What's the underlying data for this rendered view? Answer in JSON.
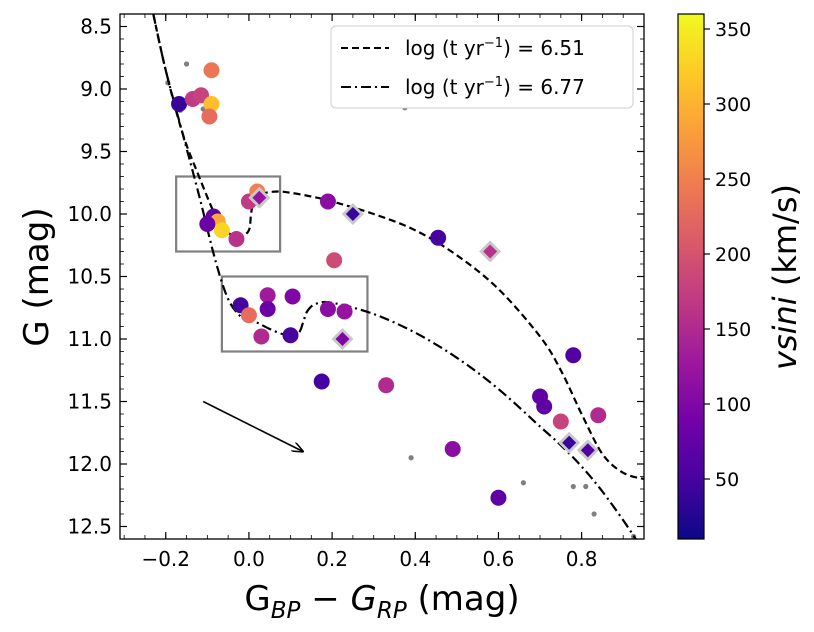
{
  "chart_data": {
    "type": "scatter",
    "xlabel": "G_{BP} − G_{RP} (mag)",
    "xlabel_parts": {
      "main": "G",
      "sub1": "BP",
      "mid": " − ",
      "it": "G",
      "sub2": "RP",
      "tail": " (mag)"
    },
    "ylabel": "G (mag)",
    "xlim": [
      -0.31,
      0.95
    ],
    "ylim": [
      12.6,
      8.4
    ],
    "xticks": [
      -0.2,
      0.0,
      0.2,
      0.4,
      0.6,
      0.8
    ],
    "xtick_labels": [
      "−0.2",
      "0.0",
      "0.2",
      "0.4",
      "0.6",
      "0.8"
    ],
    "yticks": [
      8.5,
      9.0,
      9.5,
      10.0,
      10.5,
      11.0,
      11.5,
      12.0,
      12.5
    ],
    "ytick_labels": [
      "8.5",
      "9.0",
      "9.5",
      "10.0",
      "10.5",
      "11.0",
      "11.5",
      "12.0",
      "12.5"
    ],
    "colorbar": {
      "label": "vsini (km/s)",
      "label_it": "vsini",
      "label_tail": " (km/s)",
      "range": [
        10,
        360
      ],
      "ticks": [
        50,
        100,
        150,
        200,
        250,
        300,
        350
      ],
      "tick_labels": [
        "50",
        "100",
        "150",
        "200",
        "250",
        "300",
        "350"
      ],
      "colormap": "plasma",
      "stops": [
        "#0d0887",
        "#46039f",
        "#7201a8",
        "#9c179e",
        "#bd3786",
        "#d8576b",
        "#ed7953",
        "#fb9f3a",
        "#fdca26",
        "#f0f921"
      ]
    },
    "legend": {
      "position": "top-right",
      "entries": [
        {
          "label": "log (t yr⁻¹) = 6.51",
          "main": "log (t yr",
          "sup": "−1",
          "tail": ") = 6.51",
          "style": "dashed"
        },
        {
          "label": "log (t yr⁻¹) = 6.77",
          "main": "log (t yr",
          "sup": "−1",
          "tail": ") = 6.77",
          "style": "dashdot"
        }
      ]
    },
    "isochrones": [
      {
        "name": "log (t yr⁻¹) = 6.51",
        "style": "dashed",
        "x": [
          -0.23,
          -0.2,
          -0.16,
          -0.12,
          -0.08,
          -0.06,
          -0.04,
          -0.02,
          0.0,
          0.005,
          0.01,
          0.02,
          0.04,
          0.07,
          0.1,
          0.15,
          0.2,
          0.3,
          0.4,
          0.5,
          0.6,
          0.7,
          0.75,
          0.8,
          0.85,
          0.9,
          0.95
        ],
        "y": [
          8.4,
          8.85,
          9.35,
          9.7,
          10.02,
          10.12,
          10.17,
          10.18,
          10.13,
          10.0,
          9.92,
          9.86,
          9.83,
          9.82,
          9.83,
          9.86,
          9.9,
          10.0,
          10.13,
          10.33,
          10.6,
          10.98,
          11.25,
          11.6,
          11.92,
          12.07,
          12.12
        ]
      },
      {
        "name": "log (t yr⁻¹) = 6.77",
        "style": "dashdot",
        "x": [
          -0.23,
          -0.2,
          -0.16,
          -0.12,
          -0.08,
          -0.05,
          -0.02,
          0.0,
          0.02,
          0.05,
          0.08,
          0.1,
          0.12,
          0.13,
          0.14,
          0.16,
          0.2,
          0.3,
          0.4,
          0.5,
          0.6,
          0.7,
          0.75,
          0.8,
          0.85,
          0.9,
          0.93
        ],
        "y": [
          8.4,
          8.85,
          9.35,
          9.85,
          10.38,
          10.68,
          10.82,
          10.85,
          10.87,
          10.92,
          10.96,
          10.97,
          10.95,
          10.87,
          10.78,
          10.72,
          10.71,
          10.8,
          10.95,
          11.15,
          11.4,
          11.7,
          11.85,
          12.02,
          12.22,
          12.45,
          12.6
        ]
      }
    ],
    "boxes": [
      {
        "x": [
          -0.175,
          0.075
        ],
        "y": [
          9.7,
          10.3
        ]
      },
      {
        "x": [
          -0.065,
          0.285
        ],
        "y": [
          10.5,
          11.1
        ]
      }
    ],
    "arrow": {
      "from": [
        -0.11,
        11.5
      ],
      "to": [
        0.13,
        11.9
      ]
    },
    "field_stars": [
      {
        "x": -0.195,
        "y": 8.95
      },
      {
        "x": -0.165,
        "y": 9.17
      },
      {
        "x": -0.15,
        "y": 8.8
      },
      {
        "x": -0.11,
        "y": 9.16
      },
      {
        "x": -0.1,
        "y": 9.2
      },
      {
        "x": 0.375,
        "y": 9.15
      },
      {
        "x": 0.39,
        "y": 11.95
      },
      {
        "x": 0.66,
        "y": 12.15
      },
      {
        "x": 0.78,
        "y": 12.18
      },
      {
        "x": 0.81,
        "y": 12.18
      },
      {
        "x": 0.83,
        "y": 12.4
      },
      {
        "x": 0.925,
        "y": 12.58
      }
    ],
    "stars_circle": [
      {
        "x": -0.168,
        "y": 9.12,
        "vsini": 40
      },
      {
        "x": -0.135,
        "y": 9.08,
        "vsini": 170
      },
      {
        "x": -0.115,
        "y": 9.05,
        "vsini": 180
      },
      {
        "x": -0.09,
        "y": 8.85,
        "vsini": 240
      },
      {
        "x": -0.09,
        "y": 9.12,
        "vsini": 310
      },
      {
        "x": -0.095,
        "y": 9.22,
        "vsini": 230
      },
      {
        "x": -0.085,
        "y": 10.02,
        "vsini": 70
      },
      {
        "x": -0.075,
        "y": 10.06,
        "vsini": 290
      },
      {
        "x": -0.065,
        "y": 10.13,
        "vsini": 330
      },
      {
        "x": -0.1,
        "y": 10.08,
        "vsini": 80
      },
      {
        "x": -0.03,
        "y": 10.2,
        "vsini": 160
      },
      {
        "x": 0.0,
        "y": 9.9,
        "vsini": 170
      },
      {
        "x": 0.02,
        "y": 9.82,
        "vsini": 250
      },
      {
        "x": 0.19,
        "y": 9.9,
        "vsini": 110
      },
      {
        "x": 0.205,
        "y": 10.37,
        "vsini": 190
      },
      {
        "x": 0.455,
        "y": 10.19,
        "vsini": 50
      },
      {
        "x": -0.02,
        "y": 10.73,
        "vsini": 50
      },
      {
        "x": 0.0,
        "y": 10.81,
        "vsini": 230
      },
      {
        "x": 0.045,
        "y": 10.65,
        "vsini": 130
      },
      {
        "x": 0.045,
        "y": 10.76,
        "vsini": 80
      },
      {
        "x": 0.105,
        "y": 10.66,
        "vsini": 100
      },
      {
        "x": 0.03,
        "y": 10.98,
        "vsini": 150
      },
      {
        "x": 0.1,
        "y": 10.97,
        "vsini": 50
      },
      {
        "x": 0.19,
        "y": 10.76,
        "vsini": 110
      },
      {
        "x": 0.23,
        "y": 10.78,
        "vsini": 120
      },
      {
        "x": 0.175,
        "y": 11.34,
        "vsini": 50
      },
      {
        "x": 0.33,
        "y": 11.37,
        "vsini": 150
      },
      {
        "x": 0.49,
        "y": 11.88,
        "vsini": 110
      },
      {
        "x": 0.6,
        "y": 12.27,
        "vsini": 70
      },
      {
        "x": 0.7,
        "y": 11.46,
        "vsini": 70
      },
      {
        "x": 0.71,
        "y": 11.54,
        "vsini": 70
      },
      {
        "x": 0.78,
        "y": 11.13,
        "vsini": 60
      },
      {
        "x": 0.75,
        "y": 11.66,
        "vsini": 180
      },
      {
        "x": 0.84,
        "y": 11.61,
        "vsini": 150
      }
    ],
    "stars_diamond": [
      {
        "x": 0.025,
        "y": 9.87,
        "vsini": 120
      },
      {
        "x": 0.25,
        "y": 10.0,
        "vsini": 40
      },
      {
        "x": 0.58,
        "y": 10.3,
        "vsini": 160
      },
      {
        "x": 0.225,
        "y": 11.0,
        "vsini": 100
      },
      {
        "x": 0.77,
        "y": 11.83,
        "vsini": 40
      },
      {
        "x": 0.815,
        "y": 11.89,
        "vsini": 60
      }
    ]
  }
}
